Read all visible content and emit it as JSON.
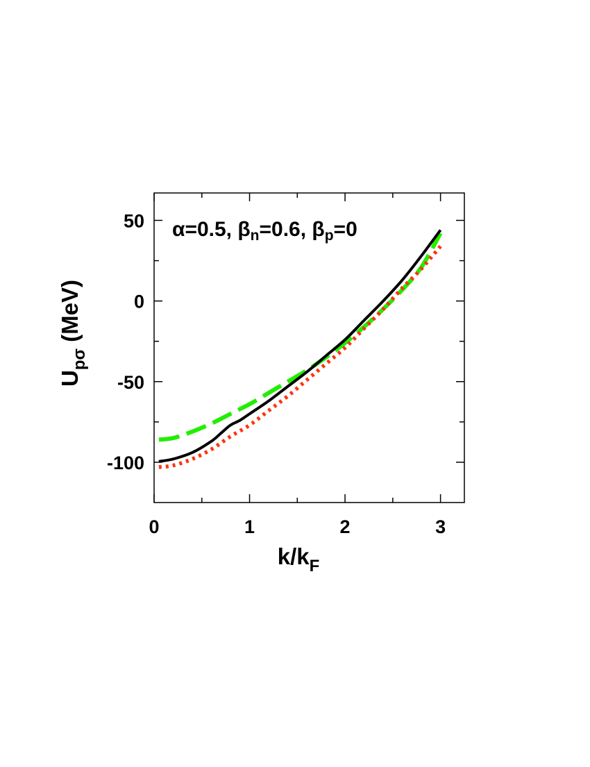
{
  "chart_data": {
    "type": "line",
    "annotation": {
      "alpha_sym": "α",
      "alpha_val": "=0.5, ",
      "beta_sym": "β",
      "beta_n_sub": "n",
      "beta_n_val": "=0.6, ",
      "beta_p_sub": "p",
      "beta_p_val": "=0"
    },
    "xlabel": {
      "main": "k/k",
      "sub": "F"
    },
    "ylabel": {
      "main": "U",
      "sub": "pσ",
      "unit": " (MeV)"
    },
    "xlim": [
      0,
      3.25
    ],
    "ylim": [
      -125,
      67
    ],
    "x_ticks": [
      0,
      1,
      2,
      3
    ],
    "x_tick_labels": [
      "0",
      "1",
      "2",
      "3"
    ],
    "x_minor_ticks": [
      0.5,
      1.5,
      2.5
    ],
    "y_ticks": [
      -100,
      -50,
      0,
      50
    ],
    "y_tick_labels": [
      "-100",
      "-50",
      "0",
      "50"
    ],
    "y_minor_ticks": [
      -75,
      -25,
      25
    ],
    "grid": false,
    "series": [
      {
        "style": "dashed",
        "color": "#22ee00",
        "x": [
          0.05,
          0.2,
          0.4,
          0.6,
          0.8,
          1.0,
          1.2,
          1.4,
          1.6,
          1.8,
          2.0,
          2.2,
          2.4,
          2.6,
          2.8,
          3.0
        ],
        "y": [
          -86,
          -85,
          -81,
          -76,
          -70,
          -64,
          -57,
          -50,
          -43,
          -35,
          -26,
          -16,
          -5,
          7,
          21,
          42
        ]
      },
      {
        "style": "solid",
        "color": "#000000",
        "x": [
          0.05,
          0.2,
          0.4,
          0.6,
          0.7,
          0.8,
          0.9,
          1.0,
          1.2,
          1.4,
          1.6,
          1.8,
          2.0,
          2.2,
          2.4,
          2.6,
          2.8,
          3.0
        ],
        "y": [
          -99.5,
          -98,
          -94,
          -87,
          -82,
          -77,
          -74,
          -70,
          -62,
          -53,
          -44,
          -34,
          -24,
          -12,
          0,
          13,
          28,
          44
        ]
      },
      {
        "style": "dotted",
        "color": "#ff3311",
        "x": [
          0.05,
          0.2,
          0.4,
          0.6,
          0.8,
          1.0,
          1.2,
          1.4,
          1.6,
          1.8,
          2.0,
          2.2,
          2.4,
          2.6,
          2.8,
          3.0
        ],
        "y": [
          -103,
          -102,
          -98,
          -92,
          -84,
          -77,
          -68,
          -59,
          -49,
          -39,
          -29,
          -17,
          -5,
          8,
          20,
          34
        ]
      }
    ]
  }
}
